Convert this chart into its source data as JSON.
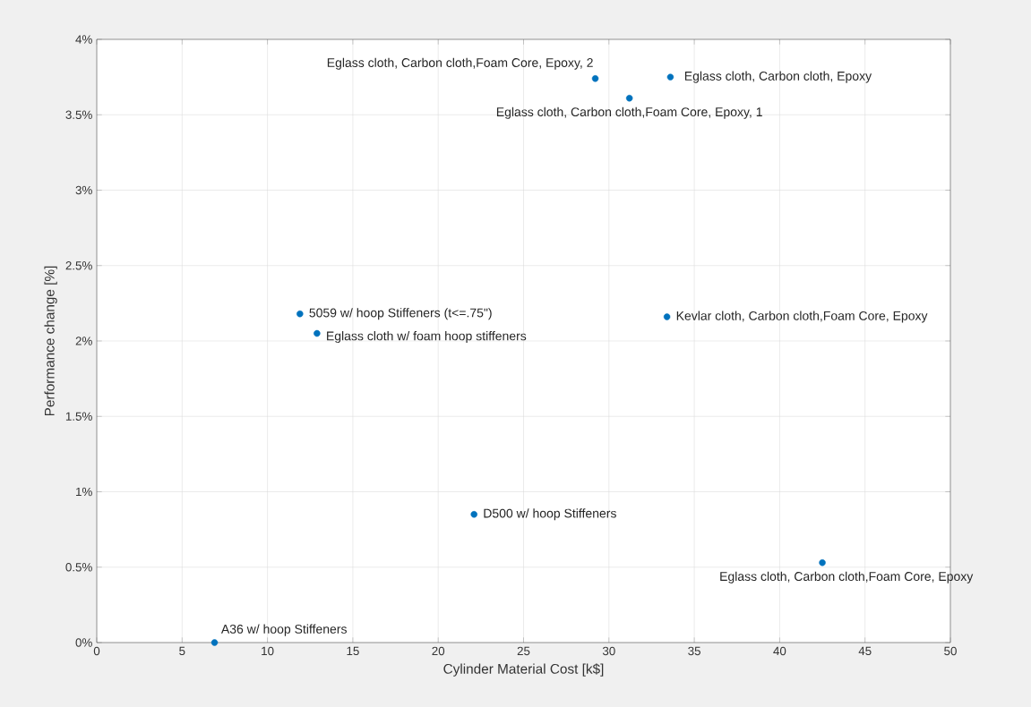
{
  "chart_data": {
    "type": "scatter",
    "xlabel": "Cylinder Material Cost [k$]",
    "ylabel": "Performance change [%]",
    "x": [
      6.9,
      11.9,
      12.9,
      22.1,
      29.2,
      31.2,
      33.6,
      33.4,
      42.5
    ],
    "values": [
      0,
      2.18,
      2.05,
      0.85,
      3.74,
      3.61,
      3.75,
      2.16,
      0.53
    ],
    "color": "#0072bd",
    "marker": "circle",
    "grid": true,
    "xlim": [
      0,
      50
    ],
    "xticks": [
      0,
      5,
      10,
      15,
      20,
      25,
      30,
      35,
      40,
      45,
      50
    ],
    "ylim": [
      0,
      4
    ],
    "yticks": [
      {
        "value": 0,
        "label": "0%"
      },
      {
        "value": 0.5,
        "label": "0.5%"
      },
      {
        "value": 1,
        "label": "1%"
      },
      {
        "value": 1.5,
        "label": "1.5%"
      },
      {
        "value": 2,
        "label": "2%"
      },
      {
        "value": 2.5,
        "label": "2.5%"
      },
      {
        "value": 3,
        "label": "3%"
      },
      {
        "value": 3.5,
        "label": "3.5%"
      },
      {
        "value": 4,
        "label": "4%"
      }
    ],
    "annotations": [
      {
        "text": "A36 w/ hoop Stiffeners",
        "x": 6.9,
        "y": 0
      },
      {
        "text": "5059 w/ hoop Stiffeners (t<=.75\")",
        "x": 11.9,
        "y": 2.18
      },
      {
        "text": "Eglass cloth w/ foam hoop stiffeners",
        "x": 12.9,
        "y": 2.05
      },
      {
        "text": "D500 w/ hoop Stiffeners",
        "x": 22.1,
        "y": 0.85
      },
      {
        "text": "Eglass cloth, Carbon cloth,Foam Core, Epoxy, 2",
        "x": 29.2,
        "y": 3.74
      },
      {
        "text": "Eglass cloth, Carbon cloth,Foam Core, Epoxy, 1",
        "x": 31.2,
        "y": 3.61
      },
      {
        "text": "Eglass cloth, Carbon cloth, Epoxy",
        "x": 33.6,
        "y": 3.75
      },
      {
        "text": "Kevlar cloth, Carbon cloth,Foam Core, Epoxy",
        "x": 33.4,
        "y": 2.16
      },
      {
        "text": "Eglass cloth, Carbon cloth,Foam Core, Epoxy",
        "x": 42.5,
        "y": 0.53
      }
    ]
  }
}
